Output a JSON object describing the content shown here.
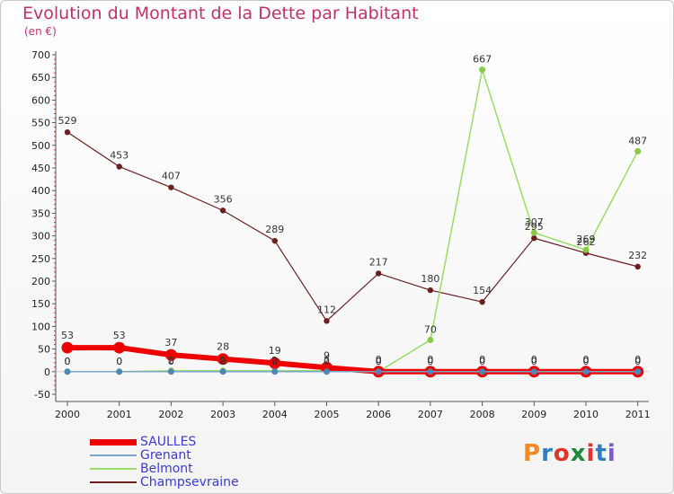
{
  "chart_data": {
    "type": "line",
    "title": "Evolution du Montant de la Dette par Habitant",
    "subtitle": "(en €)",
    "xlabel": "",
    "ylabel": "",
    "categories": [
      "2000",
      "2001",
      "2002",
      "2003",
      "2004",
      "2005",
      "2006",
      "2007",
      "2008",
      "2009",
      "2010",
      "2011"
    ],
    "ylim": [
      -50,
      700
    ],
    "yticks": [
      "-50",
      "0",
      "50",
      "100",
      "150",
      "200",
      "250",
      "300",
      "350",
      "400",
      "450",
      "500",
      "550",
      "600",
      "650",
      "700"
    ],
    "grid": false,
    "legend_position": "bottom-left",
    "series": [
      {
        "name": "SAULLES",
        "color": "#ee0000",
        "values": [
          53,
          53,
          37,
          28,
          19,
          9,
          0,
          0,
          0,
          0,
          0,
          0
        ],
        "labels": [
          "53",
          "53",
          "37",
          "28",
          "19",
          "9",
          "0",
          "0",
          "0",
          "0",
          "0",
          "0"
        ]
      },
      {
        "name": "Grenant",
        "color": "#7aa6cc",
        "values": [
          0,
          0,
          0,
          0,
          0,
          0,
          0,
          0,
          0,
          0,
          0,
          0
        ],
        "labels": [
          "0",
          "0",
          "0",
          "0",
          "0",
          "0",
          "0",
          "0",
          "0",
          "0",
          "0",
          "0"
        ]
      },
      {
        "name": "Belmont",
        "color": "#99dd66",
        "values": [
          0,
          0,
          2,
          2,
          2,
          2,
          0,
          70,
          667,
          307,
          269,
          487
        ],
        "labels": [
          "0",
          "0",
          "2",
          "2",
          "2",
          "2",
          "0",
          "70",
          "667",
          "307",
          "269",
          "487"
        ]
      },
      {
        "name": "Champsevraine",
        "color": "#6b1f1f",
        "values": [
          529,
          453,
          407,
          356,
          289,
          112,
          217,
          180,
          154,
          295,
          262,
          232
        ],
        "labels": [
          "529",
          "453",
          "407",
          "356",
          "289",
          "112",
          "217",
          "180",
          "154",
          "295",
          "262",
          "232"
        ]
      }
    ]
  },
  "logo": {
    "text": "Proxiti",
    "colors": [
      "#f08a24",
      "#2f7fc1",
      "#e4332a",
      "#1f8a3b",
      "#e4332a",
      "#2f7fc1",
      "#7a5cc4"
    ]
  }
}
